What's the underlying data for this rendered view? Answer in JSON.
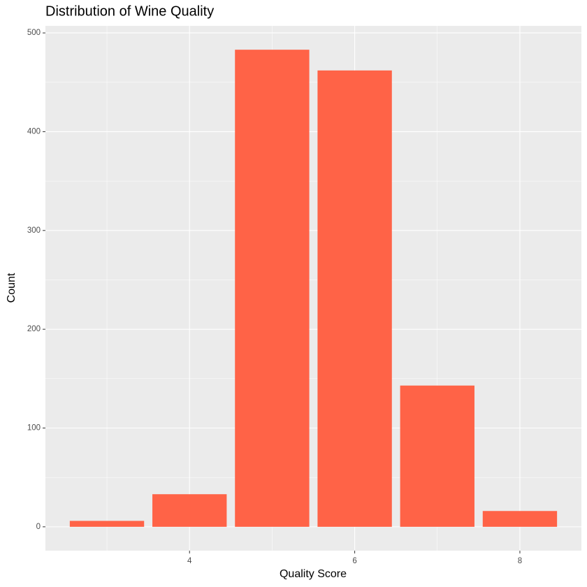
{
  "chart_data": {
    "type": "bar",
    "title": "Distribution of Wine Quality",
    "x_label": "Quality Score",
    "y_label": "Count",
    "x": [
      3,
      4,
      5,
      6,
      7,
      8
    ],
    "values": [
      6,
      33,
      483,
      462,
      143,
      16
    ],
    "color": "#ff6347",
    "bar_width": 0.9,
    "xlim": [
      2.255,
      8.745
    ],
    "xticks": [
      4,
      6,
      8
    ],
    "xminor": [
      3,
      5,
      7
    ],
    "ylim": [
      -24.15,
      507.15
    ],
    "yticks": [
      0,
      100,
      200,
      300,
      400,
      500
    ],
    "yminor": [
      50,
      150,
      250,
      350,
      450
    ],
    "grid": true
  }
}
